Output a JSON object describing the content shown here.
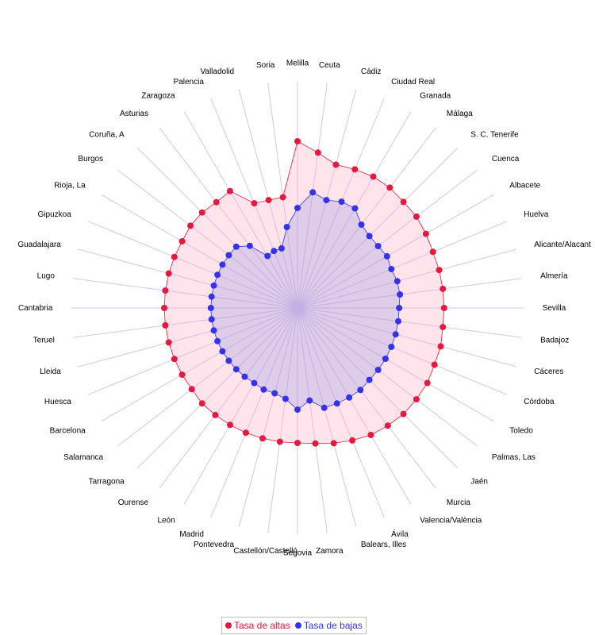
{
  "chart_data": {
    "type": "radar",
    "title": "",
    "grid": true,
    "legend_position": "bottom-center",
    "rmax": 1.0,
    "categories": [
      "Melilla",
      "Ceuta",
      "Cádiz",
      "Ciudad Real",
      "Granada",
      "Málaga",
      "S. C. Tenerife",
      "Cuenca",
      "Albacete",
      "Huelva",
      "Alicante/Alacant",
      "Almería",
      "Sevilla",
      "Badajoz",
      "Cáceres",
      "Córdoba",
      "Toledo",
      "Palmas, Las",
      "Jaén",
      "Murcia",
      "Valencia/València",
      "Ávila",
      "Balears, Illes",
      "Zamora",
      "Segovia",
      "Castellón/Castelló",
      "Pontevedra",
      "Madrid",
      "León",
      "Ourense",
      "Tarragona",
      "Salamanca",
      "Barcelona",
      "Huesca",
      "Lleida",
      "Teruel",
      "Cantabria",
      "Lugo",
      "Guadalajara",
      "Gipuzkoa",
      "Rioja, La",
      "Burgos",
      "Coruña, A",
      "Asturias",
      "Zaragoza",
      "Palencia",
      "Valladolid",
      "Soria"
    ],
    "series": [
      {
        "name": "Tasa de altas",
        "color": "#e8173d",
        "fill": "rgba(255,170,190,0.30)",
        "values": [
          1.0,
          0.94,
          0.89,
          0.9,
          0.91,
          0.91,
          0.9,
          0.9,
          0.89,
          0.88,
          0.88,
          0.88,
          0.88,
          0.88,
          0.89,
          0.89,
          0.9,
          0.9,
          0.9,
          0.89,
          0.88,
          0.86,
          0.84,
          0.82,
          0.81,
          0.81,
          0.81,
          0.81,
          0.81,
          0.81,
          0.81,
          0.8,
          0.8,
          0.8,
          0.8,
          0.8,
          0.8,
          0.8,
          0.8,
          0.8,
          0.8,
          0.81,
          0.81,
          0.8,
          0.81,
          0.68,
          0.67,
          0.67
        ]
      },
      {
        "name": "Tasa de bajas",
        "color": "#3333ee",
        "fill": "rgba(140,140,230,0.28)",
        "values": [
          0.6,
          0.7,
          0.67,
          0.69,
          0.69,
          0.63,
          0.61,
          0.61,
          0.62,
          0.61,
          0.62,
          0.62,
          0.61,
          0.61,
          0.61,
          0.61,
          0.61,
          0.61,
          0.61,
          0.62,
          0.62,
          0.62,
          0.62,
          0.56,
          0.61,
          0.55,
          0.53,
          0.53,
          0.52,
          0.52,
          0.52,
          0.52,
          0.52,
          0.52,
          0.52,
          0.52,
          0.52,
          0.52,
          0.52,
          0.52,
          0.52,
          0.52,
          0.52,
          0.47,
          0.36,
          0.37,
          0.37,
          0.49
        ]
      }
    ],
    "legend": [
      "Tasa de altas",
      "Tasa de bajas"
    ],
    "colors": {
      "spoke": "#c8c8f5",
      "label": "#000000"
    }
  }
}
